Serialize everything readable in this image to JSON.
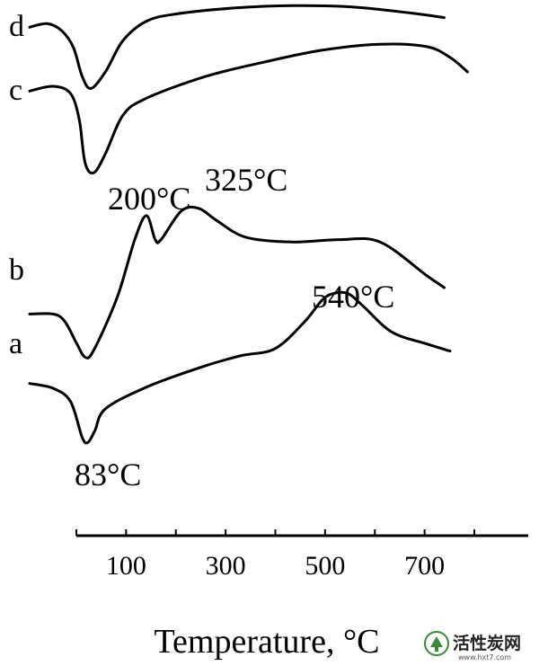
{
  "chart_data": {
    "type": "line",
    "xlabel": "Temperature, °C",
    "ylabel": "",
    "xlim": [
      -10,
      870
    ],
    "x_ticks": [
      {
        "value": 0,
        "label": ""
      },
      {
        "value": 100,
        "label": "100"
      },
      {
        "value": 200,
        "label": ""
      },
      {
        "value": 300,
        "label": "300"
      },
      {
        "value": 400,
        "label": ""
      },
      {
        "value": 500,
        "label": "500"
      },
      {
        "value": 600,
        "label": ""
      },
      {
        "value": 700,
        "label": "700"
      },
      {
        "value": 800,
        "label": ""
      }
    ],
    "series": [
      {
        "name": "a",
        "points": [
          [
            0,
            -0.55
          ],
          [
            40,
            -0.75
          ],
          [
            70,
            -1.3
          ],
          [
            90,
            -2.8
          ],
          [
            100,
            -3.0
          ],
          [
            112,
            -2.5
          ],
          [
            130,
            -1.6
          ],
          [
            200,
            -0.7
          ],
          [
            290,
            0.1
          ],
          [
            360,
            0.6
          ],
          [
            420,
            0.9
          ],
          [
            470,
            2.0
          ],
          [
            500,
            2.9
          ],
          [
            520,
            3.2
          ],
          [
            545,
            3.2
          ],
          [
            570,
            2.7
          ],
          [
            620,
            1.6
          ],
          [
            680,
            1.1
          ],
          [
            720,
            0.8
          ]
        ]
      },
      {
        "name": "b",
        "points": [
          [
            0,
            -0.8
          ],
          [
            40,
            -0.8
          ],
          [
            60,
            -1.1
          ],
          [
            80,
            -2.0
          ],
          [
            95,
            -2.6
          ],
          [
            110,
            -2.3
          ],
          [
            150,
            -0.1
          ],
          [
            180,
            2.3
          ],
          [
            200,
            3.3
          ],
          [
            215,
            2.3
          ],
          [
            225,
            2.3
          ],
          [
            260,
            3.5
          ],
          [
            290,
            3.6
          ],
          [
            320,
            3.1
          ],
          [
            370,
            2.4
          ],
          [
            450,
            2.2
          ],
          [
            530,
            2.3
          ],
          [
            600,
            2.2
          ],
          [
            680,
            0.8
          ],
          [
            710,
            0.3
          ]
        ]
      },
      {
        "name": "c",
        "points": [
          [
            0,
            0.4
          ],
          [
            40,
            0.6
          ],
          [
            70,
            0.3
          ],
          [
            85,
            -0.8
          ],
          [
            95,
            -2.6
          ],
          [
            110,
            -3.0
          ],
          [
            130,
            -2.2
          ],
          [
            160,
            -0.6
          ],
          [
            200,
            0.1
          ],
          [
            300,
            1.0
          ],
          [
            400,
            1.6
          ],
          [
            500,
            2.1
          ],
          [
            600,
            2.35
          ],
          [
            680,
            2.25
          ],
          [
            720,
            1.8
          ],
          [
            750,
            1.2
          ]
        ]
      },
      {
        "name": "d",
        "points": [
          [
            0,
            0.85
          ],
          [
            30,
            1.0
          ],
          [
            55,
            0.7
          ],
          [
            75,
            0.0
          ],
          [
            90,
            -1.2
          ],
          [
            105,
            -1.7
          ],
          [
            130,
            -1.0
          ],
          [
            160,
            0.3
          ],
          [
            200,
            1.1
          ],
          [
            250,
            1.4
          ],
          [
            350,
            1.65
          ],
          [
            450,
            1.75
          ],
          [
            550,
            1.7
          ],
          [
            650,
            1.45
          ],
          [
            710,
            1.25
          ]
        ]
      }
    ],
    "annotations": [
      "83°C",
      "540°C",
      "200°C",
      "325°C"
    ],
    "grid": false,
    "legend": "none"
  },
  "watermark": {
    "text": "活性炭网",
    "url": "www.hxt7.com"
  }
}
